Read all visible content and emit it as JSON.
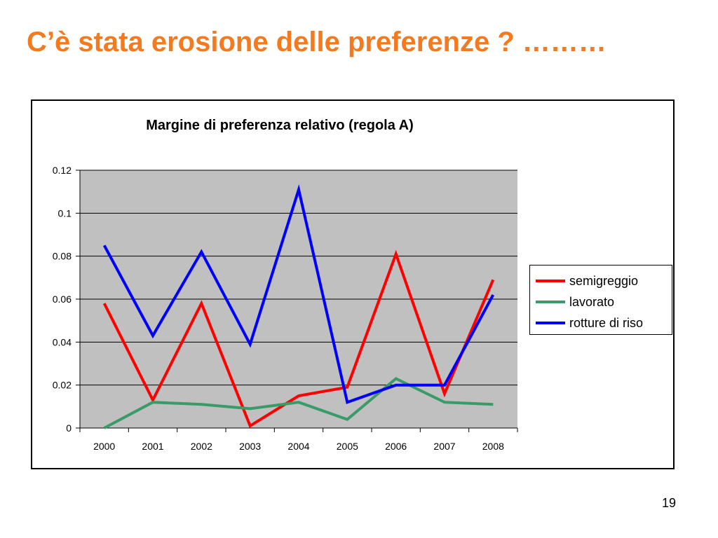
{
  "slide": {
    "title": "C’è stata erosione delle preferenze ? ………",
    "page_number": "19"
  },
  "colors": {
    "title": "#f47a1f",
    "plot_background": "#c0c0c0"
  },
  "chart_data": {
    "type": "line",
    "title": "Margine di preferenza relativo (regola A)",
    "xlabel": "",
    "ylabel": "",
    "categories": [
      "2000",
      "2001",
      "2002",
      "2003",
      "2004",
      "2005",
      "2006",
      "2007",
      "2008"
    ],
    "ylim": [
      0,
      0.12
    ],
    "yticks": [
      "0",
      "0.02",
      "0.04",
      "0.06",
      "0.08",
      "0.1",
      "0.12"
    ],
    "grid": true,
    "legend_position": "right",
    "series": [
      {
        "name": "semigreggio",
        "color": "#ff0000",
        "values": [
          0.058,
          0.013,
          0.058,
          0.001,
          0.015,
          0.019,
          0.081,
          0.016,
          0.069
        ]
      },
      {
        "name": "lavorato",
        "color": "#3a9a68",
        "values": [
          0.0,
          0.012,
          0.011,
          0.009,
          0.012,
          0.004,
          0.023,
          0.012,
          0.011
        ]
      },
      {
        "name": "rotture di riso",
        "color": "#0000ff",
        "values": [
          0.085,
          0.043,
          0.082,
          0.039,
          0.111,
          0.012,
          0.02,
          0.02,
          0.062
        ]
      }
    ]
  }
}
